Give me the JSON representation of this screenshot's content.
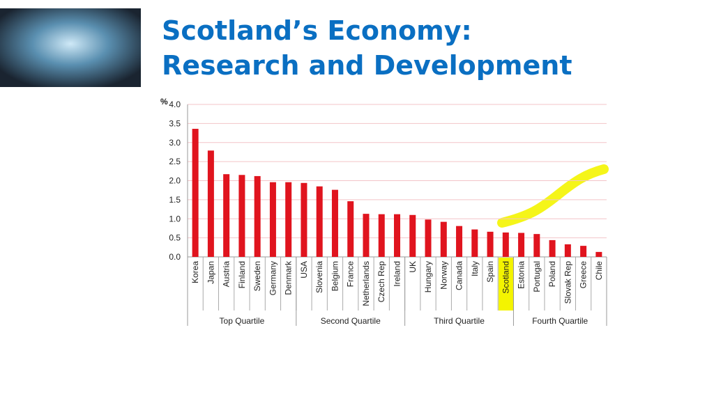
{
  "slide": {
    "title": [
      "Scotland’s Economy:",
      "Research and Development"
    ]
  },
  "chart_data": {
    "type": "bar",
    "y_label": "%",
    "categories": [
      "Korea",
      "Japan",
      "Austria",
      "Finland",
      "Sweden",
      "Germany",
      "Denmark",
      "USA",
      "Slovenia",
      "Belgium",
      "France",
      "Netherlands",
      "Czech Rep",
      "Ireland",
      "UK",
      "Hungary",
      "Norway",
      "Canada",
      "Italy",
      "Spain",
      "Scotland",
      "Estonia",
      "Portugal",
      "Poland",
      "Slovak Rep",
      "Greece",
      "Chile"
    ],
    "values": [
      3.36,
      2.79,
      2.17,
      2.15,
      2.12,
      1.96,
      1.96,
      1.94,
      1.85,
      1.76,
      1.46,
      1.13,
      1.12,
      1.12,
      1.1,
      0.98,
      0.92,
      0.81,
      0.72,
      0.66,
      0.64,
      0.63,
      0.6,
      0.44,
      0.33,
      0.29,
      0.13
    ],
    "color": "#e0141e",
    "groups": [
      {
        "name": "Top Quartile",
        "size": 7
      },
      {
        "name": "Second Quartile",
        "size": 7
      },
      {
        "name": "Third Quartile",
        "size": 7
      },
      {
        "name": "Fourth Quartile",
        "size": 6
      }
    ],
    "ylim": [
      0,
      4
    ],
    "yticks": [
      {
        "value": 0,
        "label": "0.0"
      },
      {
        "value": 0.5,
        "label": "0.5"
      },
      {
        "value": 1,
        "label": "1.0"
      },
      {
        "value": 1.5,
        "label": "1.5"
      },
      {
        "value": 2,
        "label": "2.0"
      },
      {
        "value": 2.5,
        "label": "2.5"
      },
      {
        "value": 3,
        "label": "3.0"
      },
      {
        "value": 3.5,
        "label": "3.5"
      },
      {
        "value": 4,
        "label": "4.0"
      }
    ],
    "grid": true
  }
}
